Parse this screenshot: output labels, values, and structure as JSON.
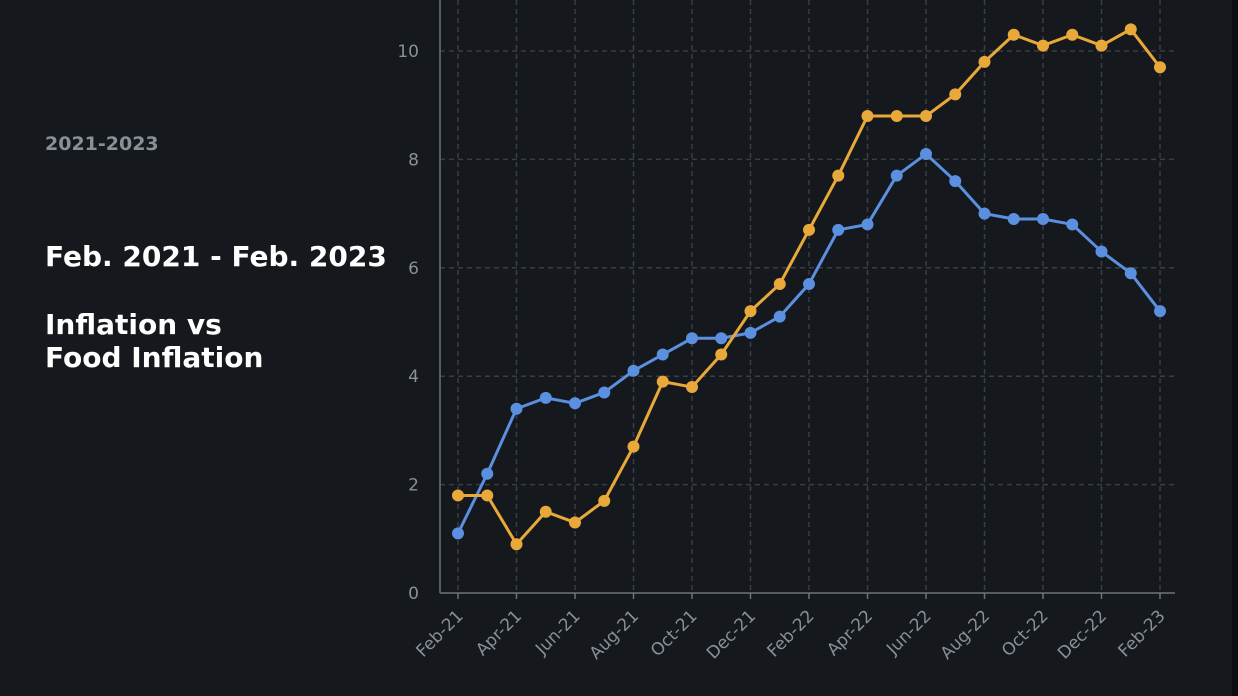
{
  "sidebar": {
    "date_range": "2021-2023",
    "headline": "Feb. 2021 - Feb. 2023",
    "title_line1": "Inflation vs",
    "title_line2": "Food Inflation"
  },
  "colors": {
    "background": "#15181d",
    "grid": "#3a3e45",
    "axis": "#6d727a",
    "inflation": "#5b8fe0",
    "food_inflation": "#e9a93a"
  },
  "chart_data": {
    "type": "line",
    "title": "Inflation vs Food Inflation",
    "subtitle": "Feb. 2021 - Feb. 2023",
    "xlabel": "",
    "ylabel": "",
    "ylim": [
      0,
      11
    ],
    "yticks": [
      0,
      2,
      4,
      6,
      8,
      10
    ],
    "grid": true,
    "legend": "none",
    "x": [
      "Feb-21",
      "Mar-21",
      "Apr-21",
      "May-21",
      "Jun-21",
      "Jul-21",
      "Aug-21",
      "Sep-21",
      "Oct-21",
      "Nov-21",
      "Dec-21",
      "Jan-22",
      "Feb-22",
      "Mar-22",
      "Apr-22",
      "May-22",
      "Jun-22",
      "Jul-22",
      "Aug-22",
      "Sep-22",
      "Oct-22",
      "Nov-22",
      "Dec-22",
      "Jan-23",
      "Feb-23"
    ],
    "xtick_labels": [
      "Feb-21",
      "Apr-21",
      "Jun-21",
      "Aug-21",
      "Oct-21",
      "Dec-21",
      "Feb-22",
      "Apr-22",
      "Jun-22",
      "Aug-22",
      "Oct-22",
      "Dec-22",
      "Feb-23"
    ],
    "series": [
      {
        "color": "#5b8fe0",
        "values": [
          1.1,
          2.2,
          3.4,
          3.6,
          3.5,
          3.7,
          4.1,
          4.4,
          4.7,
          4.7,
          4.8,
          5.1,
          5.7,
          6.7,
          6.8,
          7.7,
          8.1,
          7.6,
          7.0,
          6.9,
          6.9,
          6.8,
          6.3,
          5.9,
          5.2
        ]
      },
      {
        "color": "#e9a93a",
        "values": [
          1.8,
          1.8,
          0.9,
          1.5,
          1.3,
          1.7,
          2.7,
          3.9,
          3.8,
          4.4,
          5.2,
          5.7,
          6.7,
          7.7,
          8.8,
          8.8,
          8.8,
          9.2,
          9.8,
          10.3,
          10.1,
          10.3,
          10.1,
          10.4,
          9.7
        ]
      }
    ]
  }
}
